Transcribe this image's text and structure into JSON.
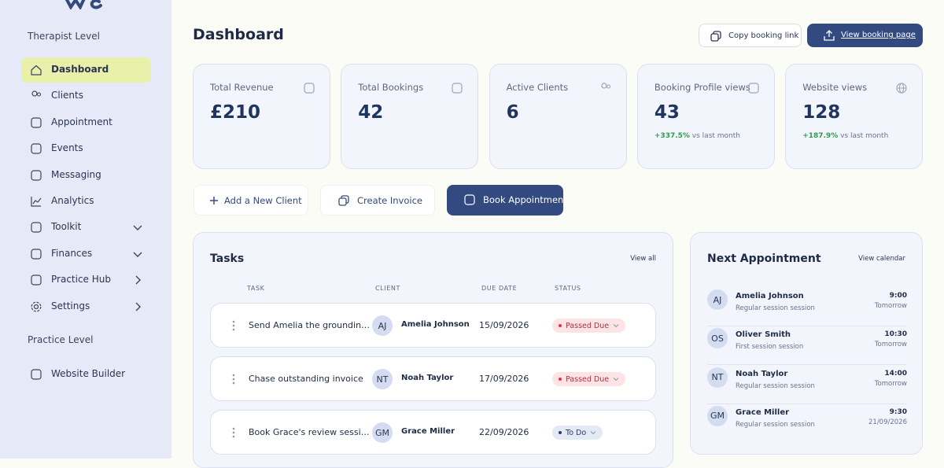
{
  "sidebar": {
    "section1": "Therapist Level",
    "nav": [
      {
        "label": "Dashboard",
        "active": true
      },
      {
        "label": "Clients"
      },
      {
        "label": "Appointment"
      },
      {
        "label": "Events"
      },
      {
        "label": "Messaging"
      },
      {
        "label": "Analytics"
      },
      {
        "label": "Toolkit",
        "chevron": "down"
      },
      {
        "label": "Finances",
        "chevron": "down"
      },
      {
        "label": "Practice Hub",
        "chevron": "right"
      },
      {
        "label": "Settings",
        "chevron": "right"
      }
    ],
    "section2": "Practice Level",
    "nav2": [
      {
        "label": "Website Builder"
      }
    ]
  },
  "header": {
    "title": "Dashboard",
    "copy_link": "Copy booking link",
    "view_page": "View booking page"
  },
  "stats": [
    {
      "label": "Total Revenue",
      "value": "£210"
    },
    {
      "label": "Total Bookings",
      "value": 42
    },
    {
      "label": "Active Clients",
      "value": 6
    },
    {
      "label": "Booking Profile views",
      "value": 43,
      "change": "+337.5%",
      "change_suffix": "vs last month"
    },
    {
      "label": "Website views",
      "value": 128,
      "change": "+187.9%",
      "change_suffix": "vs last month"
    }
  ],
  "actions": [
    {
      "label": "Add a New Client"
    },
    {
      "label": "Create Invoice"
    },
    {
      "label": "Book Appointment",
      "primary": true
    }
  ],
  "tasks": {
    "title": "Tasks",
    "view_all": "View all",
    "columns": [
      "TASK",
      "CLIENT",
      "DUE DATE",
      "STATUS"
    ],
    "rows": [
      {
        "task": "Send Amelia the groundin…",
        "initials": "AJ",
        "client": "Amelia Johnson",
        "due": "15/09/2026",
        "status": "Passed Due"
      },
      {
        "task": "Chase outstanding invoice",
        "initials": "NT",
        "client": "Noah Taylor",
        "due": "17/09/2026",
        "status": "Passed Due"
      },
      {
        "task": "Book Grace's review sessi…",
        "initials": "GM",
        "client": "Grace Miller",
        "due": "22/09/2026",
        "status": "To Do"
      }
    ]
  },
  "appointments": {
    "title": "Next Appointment",
    "view": "View calendar",
    "items": [
      {
        "initials": "AJ",
        "name": "Amelia Johnson",
        "type": "Regular session session",
        "time": "9:00",
        "day": "Tomorrow"
      },
      {
        "initials": "OS",
        "name": "Oliver Smith",
        "type": "First session session",
        "time": "10:30",
        "day": "Tomorrow"
      },
      {
        "initials": "NT",
        "name": "Noah Taylor",
        "type": "Regular session session",
        "time": "14:00",
        "day": "Tomorrow"
      },
      {
        "initials": "GM",
        "name": "Grace Miller",
        "type": "Regular session session",
        "time": "9:30",
        "day": "21/09/2026"
      }
    ]
  }
}
